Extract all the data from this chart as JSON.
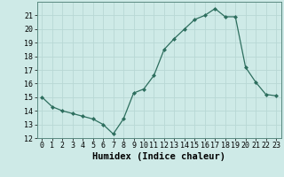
{
  "x": [
    0,
    1,
    2,
    3,
    4,
    5,
    6,
    7,
    8,
    9,
    10,
    11,
    12,
    13,
    14,
    15,
    16,
    17,
    18,
    19,
    20,
    21,
    22,
    23
  ],
  "y": [
    15,
    14.3,
    14,
    13.8,
    13.6,
    13.4,
    13.0,
    12.3,
    13.4,
    15.3,
    15.6,
    16.6,
    18.5,
    19.3,
    20.0,
    20.7,
    21.0,
    21.5,
    20.9,
    20.9,
    17.2,
    16.1,
    15.2,
    15.1
  ],
  "xlabel": "Humidex (Indice chaleur)",
  "ylim": [
    12,
    22
  ],
  "xlim": [
    -0.5,
    23.5
  ],
  "yticks": [
    12,
    13,
    14,
    15,
    16,
    17,
    18,
    19,
    20,
    21
  ],
  "xticks": [
    0,
    1,
    2,
    3,
    4,
    5,
    6,
    7,
    8,
    9,
    10,
    11,
    12,
    13,
    14,
    15,
    16,
    17,
    18,
    19,
    20,
    21,
    22,
    23
  ],
  "line_color": "#2d6e5e",
  "marker": "D",
  "marker_size": 2.0,
  "bg_color": "#ceeae7",
  "grid_color": "#b8d8d5",
  "tick_label_fontsize": 6,
  "xlabel_fontsize": 7.5
}
